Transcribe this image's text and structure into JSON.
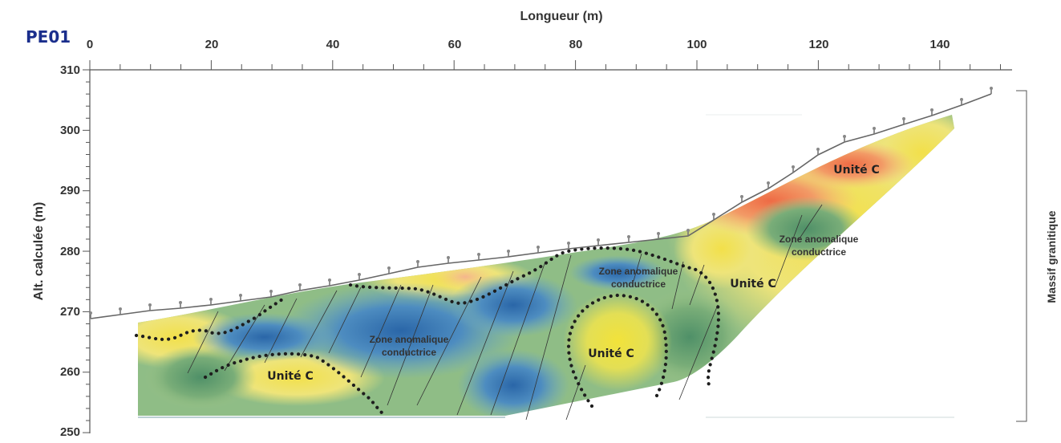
{
  "profile_id": "PE01",
  "x_axis": {
    "title": "Longueur (m)",
    "ticks": [
      "0",
      "20",
      "40",
      "60",
      "80",
      "100",
      "120",
      "140"
    ]
  },
  "y_axis": {
    "title": "Alt. calculée (m)",
    "ticks": [
      "310",
      "300",
      "290",
      "280",
      "270",
      "260",
      "250"
    ]
  },
  "side_label": "Massif granitique",
  "labels": {
    "zone1_line1": "Zone anomalique",
    "zone1_line2": "conductrice",
    "zone2_line1": "Zone anomalique",
    "zone2_line2": "conductrice",
    "zone3_line1": "Zone anomalique",
    "zone3_line2": "conductrice",
    "unit_left": "Unité C",
    "unit_center": "Unité C",
    "unit_mid": "Unité C",
    "unit_top": "Unité C"
  },
  "colors": {
    "conductive": "#2e6fae",
    "resistive": "#f07a50",
    "intermediate": "#e8e04a",
    "topography": "#555555",
    "profile_id": "#1a2e8c"
  }
}
